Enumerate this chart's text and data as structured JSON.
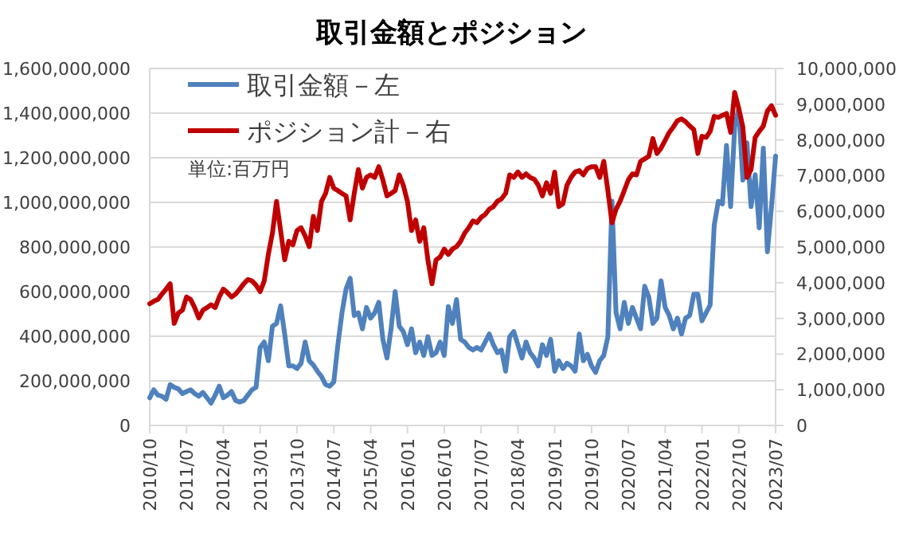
{
  "chart_data": {
    "type": "line",
    "title": "取引金額とポジション",
    "legend": "top left",
    "grid": "y",
    "annotations": [
      "単位:百万円"
    ],
    "x": [
      "2010-10",
      "2010-11",
      "2010-12",
      "2011-01",
      "2011-02",
      "2011-03",
      "2011-04",
      "2011-05",
      "2011-06",
      "2011-07",
      "2011-08",
      "2011-09",
      "2011-10",
      "2011-11",
      "2011-12",
      "2012-01",
      "2012-02",
      "2012-03",
      "2012-04",
      "2012-05",
      "2012-06",
      "2012-07",
      "2012-08",
      "2012-09",
      "2012-10",
      "2012-11",
      "2012-12",
      "2013-01",
      "2013-02",
      "2013-03",
      "2013-04",
      "2013-05",
      "2013-06",
      "2013-07",
      "2013-08",
      "2013-09",
      "2013-10",
      "2013-11",
      "2013-12",
      "2014-01",
      "2014-02",
      "2014-03",
      "2014-04",
      "2014-05",
      "2014-06",
      "2014-07",
      "2014-08",
      "2014-09",
      "2014-10",
      "2014-11",
      "2014-12",
      "2015-01",
      "2015-02",
      "2015-03",
      "2015-04",
      "2015-05",
      "2015-06",
      "2015-07",
      "2015-08",
      "2015-09",
      "2015-10",
      "2015-11",
      "2015-12",
      "2016-01",
      "2016-02",
      "2016-03",
      "2016-04",
      "2016-05",
      "2016-06",
      "2016-07",
      "2016-08",
      "2016-09",
      "2016-10",
      "2016-11",
      "2016-12",
      "2017-01",
      "2017-02",
      "2017-03",
      "2017-04",
      "2017-05",
      "2017-06",
      "2017-07",
      "2017-08",
      "2017-09",
      "2017-10",
      "2017-11",
      "2017-12",
      "2018-01",
      "2018-02",
      "2018-03",
      "2018-04",
      "2018-05",
      "2018-06",
      "2018-07",
      "2018-08",
      "2018-09",
      "2018-10",
      "2018-11",
      "2018-12",
      "2019-01",
      "2019-02",
      "2019-03",
      "2019-04",
      "2019-05",
      "2019-06",
      "2019-07",
      "2019-08",
      "2019-09",
      "2019-10",
      "2019-11",
      "2019-12",
      "2020-01",
      "2020-02",
      "2020-03",
      "2020-04",
      "2020-05",
      "2020-06",
      "2020-07",
      "2020-08",
      "2020-09",
      "2020-10",
      "2020-11",
      "2020-12",
      "2021-01",
      "2021-02",
      "2021-03",
      "2021-04",
      "2021-05",
      "2021-06",
      "2021-07",
      "2021-08",
      "2021-09",
      "2021-10",
      "2021-11",
      "2021-12",
      "2022-01",
      "2022-02",
      "2022-03",
      "2022-04",
      "2022-05",
      "2022-06",
      "2022-07",
      "2022-08",
      "2022-09",
      "2022-10",
      "2022-11",
      "2022-12",
      "2023-01",
      "2023-02",
      "2023-03",
      "2023-04",
      "2023-05",
      "2023-06",
      "2023-07"
    ],
    "xlim": [
      "2010-10",
      "2023-07"
    ],
    "xticks": [
      {
        "value": "2010-10",
        "label": "2010/10"
      },
      {
        "value": "2011-07",
        "label": "2011/07"
      },
      {
        "value": "2012-04",
        "label": "2012/04"
      },
      {
        "value": "2013-01",
        "label": "2013/01"
      },
      {
        "value": "2013-10",
        "label": "2013/10"
      },
      {
        "value": "2014-07",
        "label": "2014/07"
      },
      {
        "value": "2015-04",
        "label": "2015/04"
      },
      {
        "value": "2016-01",
        "label": "2016/01"
      },
      {
        "value": "2016-10",
        "label": "2016/10"
      },
      {
        "value": "2017-07",
        "label": "2017/07"
      },
      {
        "value": "2018-04",
        "label": "2018/04"
      },
      {
        "value": "2019-01",
        "label": "2019/01"
      },
      {
        "value": "2019-10",
        "label": "2019/10"
      },
      {
        "value": "2020-07",
        "label": "2020/07"
      },
      {
        "value": "2021-04",
        "label": "2021/04"
      },
      {
        "value": "2022-01",
        "label": "2022/01"
      },
      {
        "value": "2022-10",
        "label": "2022/10"
      },
      {
        "value": "2023-07",
        "label": "2023/07"
      }
    ],
    "ylim": [
      0,
      1600000000
    ],
    "yticks": [
      0,
      {
        "value": 200000000,
        "label": "200,000,000"
      },
      {
        "value": 400000000,
        "label": "400,000,000"
      },
      {
        "value": 600000000,
        "label": "600,000,000"
      },
      {
        "value": 800000000,
        "label": "800,000,000"
      },
      {
        "value": 1000000000,
        "label": "1,000,000,000"
      },
      {
        "value": 1200000000,
        "label": "1,200,000,000"
      },
      {
        "value": 1400000000,
        "label": "1,400,000,000"
      },
      {
        "value": 1600000000,
        "label": "1,600,000,000"
      }
    ],
    "y2lim": [
      0,
      10000000
    ],
    "y2ticks": [
      0,
      {
        "value": 1000000,
        "label": "1,000,000"
      },
      {
        "value": 2000000,
        "label": "2,000,000"
      },
      {
        "value": 3000000,
        "label": "3,000,000"
      },
      {
        "value": 4000000,
        "label": "4,000,000"
      },
      {
        "value": 5000000,
        "label": "5,000,000"
      },
      {
        "value": 6000000,
        "label": "6,000,000"
      },
      {
        "value": 7000000,
        "label": "7,000,000"
      },
      {
        "value": 8000000,
        "label": "8,000,000"
      },
      {
        "value": 9000000,
        "label": "9,000,000"
      },
      {
        "value": 10000000,
        "label": "10,000,000"
      }
    ],
    "series": [
      {
        "name": "取引金額－左",
        "color": "#4f81bd",
        "values": [
          124000000,
          160000000,
          136000000,
          131000000,
          117000000,
          183000000,
          171000000,
          164000000,
          143000000,
          152000000,
          160000000,
          143000000,
          131000000,
          148000000,
          124000000,
          100000000,
          136000000,
          176000000,
          124000000,
          136000000,
          152000000,
          112000000,
          105000000,
          112000000,
          136000000,
          160000000,
          171000000,
          350000000,
          374000000,
          290000000,
          445000000,
          457000000,
          536000000,
          410000000,
          267000000,
          267000000,
          255000000,
          279000000,
          374000000,
          290000000,
          271000000,
          243000000,
          219000000,
          183000000,
          176000000,
          195000000,
          362000000,
          505000000,
          612000000,
          660000000,
          493000000,
          505000000,
          433000000,
          529000000,
          481000000,
          505000000,
          552000000,
          386000000,
          302000000,
          433000000,
          600000000,
          445000000,
          421000000,
          362000000,
          433000000,
          326000000,
          374000000,
          314000000,
          398000000,
          314000000,
          326000000,
          374000000,
          314000000,
          533000000,
          457000000,
          564000000,
          386000000,
          374000000,
          350000000,
          338000000,
          350000000,
          338000000,
          374000000,
          410000000,
          362000000,
          326000000,
          338000000,
          243000000,
          398000000,
          421000000,
          362000000,
          302000000,
          374000000,
          326000000,
          302000000,
          267000000,
          362000000,
          314000000,
          386000000,
          243000000,
          290000000,
          255000000,
          279000000,
          267000000,
          243000000,
          410000000,
          290000000,
          319000000,
          267000000,
          238000000,
          290000000,
          314000000,
          398000000,
          1005000000,
          505000000,
          433000000,
          552000000,
          457000000,
          529000000,
          481000000,
          433000000,
          624000000,
          576000000,
          457000000,
          481000000,
          648000000,
          529000000,
          493000000,
          433000000,
          481000000,
          410000000,
          481000000,
          493000000,
          588000000,
          588000000,
          469000000,
          505000000,
          540000000,
          898000000,
          1005000000,
          993000000,
          1255000000,
          981000000,
          1338000000,
          1421000000,
          1100000000,
          1267000000,
          981000000,
          1124000000,
          886000000,
          1243000000,
          779000000,
          981000000,
          1207000000
        ]
      },
      {
        "name": "ポジション計－右",
        "color": "#c00000",
        "axis": "y2",
        "values": [
          3410000,
          3480000,
          3530000,
          3680000,
          3820000,
          3970000,
          2860000,
          3150000,
          3230000,
          3600000,
          3530000,
          3300000,
          3010000,
          3230000,
          3300000,
          3380000,
          3300000,
          3600000,
          3820000,
          3720000,
          3600000,
          3680000,
          3820000,
          3970000,
          4090000,
          4050000,
          3930000,
          3750000,
          4050000,
          4790000,
          5390000,
          6280000,
          5460000,
          4640000,
          5160000,
          5060000,
          5460000,
          5540000,
          5310000,
          5010000,
          5860000,
          5460000,
          6280000,
          6500000,
          6950000,
          6650000,
          6580000,
          6500000,
          6430000,
          5760000,
          6500000,
          7170000,
          6650000,
          6950000,
          7020000,
          6950000,
          7250000,
          6880000,
          6430000,
          6500000,
          6580000,
          7020000,
          6730000,
          6280000,
          5460000,
          5760000,
          5160000,
          5540000,
          4640000,
          3970000,
          4640000,
          4720000,
          4940000,
          4790000,
          4940000,
          5010000,
          5160000,
          5390000,
          5540000,
          5730000,
          5680000,
          5830000,
          5910000,
          6060000,
          6130000,
          6280000,
          6350000,
          6500000,
          7020000,
          6950000,
          7100000,
          6950000,
          7050000,
          6950000,
          6900000,
          6730000,
          6430000,
          6800000,
          6500000,
          7100000,
          6130000,
          6210000,
          6730000,
          6950000,
          7100000,
          7140000,
          7020000,
          7200000,
          7250000,
          7250000,
          6950000,
          7400000,
          6580000,
          5680000,
          6060000,
          6280000,
          6580000,
          6880000,
          7050000,
          7020000,
          7400000,
          7470000,
          7540000,
          8040000,
          7620000,
          7770000,
          7990000,
          8210000,
          8360000,
          8540000,
          8590000,
          8510000,
          8390000,
          8290000,
          7620000,
          8100000,
          8070000,
          8240000,
          8660000,
          8630000,
          8690000,
          8740000,
          8210000,
          9330000,
          8880000,
          8360000,
          6950000,
          7170000,
          8070000,
          8240000,
          8390000,
          8810000,
          8960000,
          8690000
        ]
      }
    ]
  }
}
